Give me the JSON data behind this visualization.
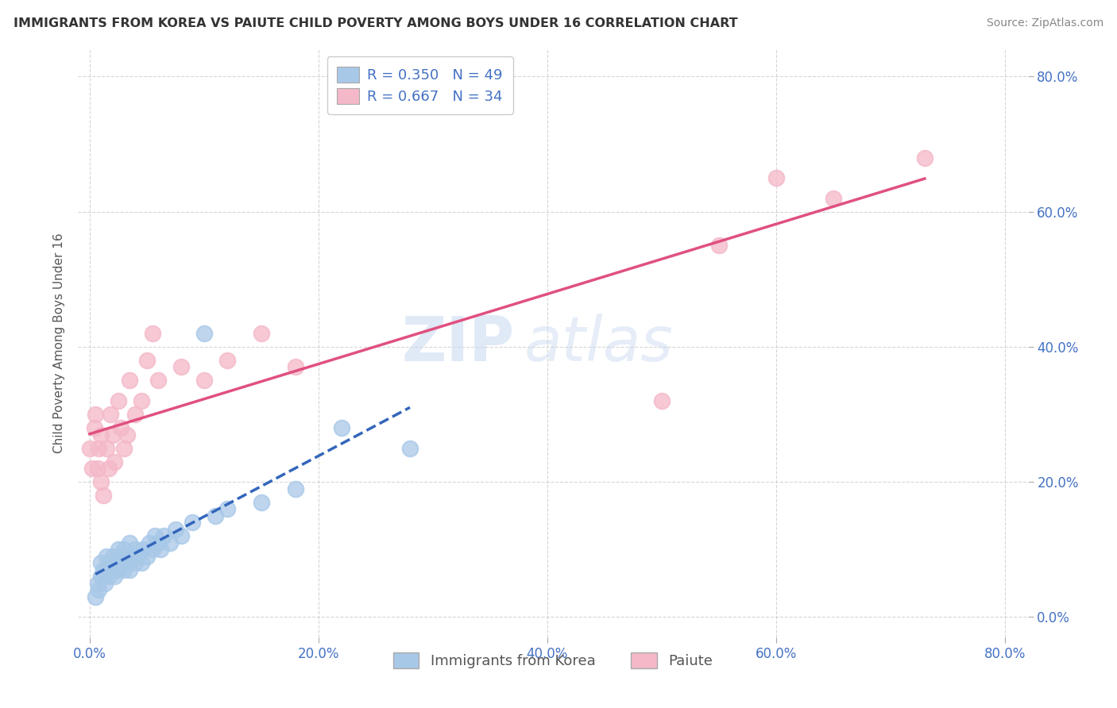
{
  "title": "IMMIGRANTS FROM KOREA VS PAIUTE CHILD POVERTY AMONG BOYS UNDER 16 CORRELATION CHART",
  "source": "Source: ZipAtlas.com",
  "ylabel": "Child Poverty Among Boys Under 16",
  "xlim": [
    -0.01,
    0.82
  ],
  "ylim": [
    -0.03,
    0.84
  ],
  "xticks": [
    0.0,
    0.2,
    0.4,
    0.6,
    0.8
  ],
  "yticks": [
    0.0,
    0.2,
    0.4,
    0.6,
    0.8
  ],
  "xtick_labels": [
    "0.0%",
    "20.0%",
    "40.0%",
    "60.0%",
    "80.0%"
  ],
  "ytick_labels": [
    "0.0%",
    "20.0%",
    "40.0%",
    "60.0%",
    "80.0%"
  ],
  "legend_line1": "R = 0.350   N = 49",
  "legend_line2": "R = 0.667   N = 34",
  "legend_label_blue": "Immigrants from Korea",
  "legend_label_pink": "Paiute",
  "blue_scatter_color": "#a8c8e8",
  "pink_scatter_color": "#f4b8c8",
  "blue_line_color": "#3366bb",
  "pink_line_color": "#e05080",
  "text_color_blue": "#4472c4",
  "grid_color": "#cccccc",
  "background_color": "#ffffff",
  "korea_x": [
    0.005,
    0.007,
    0.008,
    0.01,
    0.01,
    0.012,
    0.013,
    0.015,
    0.015,
    0.017,
    0.018,
    0.02,
    0.02,
    0.022,
    0.023,
    0.025,
    0.025,
    0.027,
    0.028,
    0.03,
    0.03,
    0.032,
    0.033,
    0.035,
    0.035,
    0.037,
    0.04,
    0.04,
    0.042,
    0.045,
    0.047,
    0.05,
    0.052,
    0.055,
    0.057,
    0.06,
    0.062,
    0.065,
    0.07,
    0.075,
    0.08,
    0.09,
    0.1,
    0.11,
    0.12,
    0.15,
    0.18,
    0.22,
    0.28
  ],
  "korea_y": [
    0.03,
    0.05,
    0.04,
    0.08,
    0.06,
    0.07,
    0.05,
    0.09,
    0.07,
    0.06,
    0.08,
    0.07,
    0.09,
    0.06,
    0.08,
    0.07,
    0.1,
    0.08,
    0.09,
    0.07,
    0.1,
    0.08,
    0.09,
    0.07,
    0.11,
    0.09,
    0.08,
    0.1,
    0.09,
    0.08,
    0.1,
    0.09,
    0.11,
    0.1,
    0.12,
    0.11,
    0.1,
    0.12,
    0.11,
    0.13,
    0.12,
    0.14,
    0.42,
    0.15,
    0.16,
    0.17,
    0.19,
    0.28,
    0.25
  ],
  "paiute_x": [
    0.0,
    0.002,
    0.004,
    0.005,
    0.007,
    0.008,
    0.01,
    0.01,
    0.012,
    0.015,
    0.017,
    0.018,
    0.02,
    0.022,
    0.025,
    0.027,
    0.03,
    0.033,
    0.035,
    0.04,
    0.045,
    0.05,
    0.055,
    0.06,
    0.08,
    0.1,
    0.12,
    0.15,
    0.18,
    0.5,
    0.55,
    0.6,
    0.65,
    0.73
  ],
  "paiute_y": [
    0.25,
    0.22,
    0.28,
    0.3,
    0.22,
    0.25,
    0.2,
    0.27,
    0.18,
    0.25,
    0.22,
    0.3,
    0.27,
    0.23,
    0.32,
    0.28,
    0.25,
    0.27,
    0.35,
    0.3,
    0.32,
    0.38,
    0.42,
    0.35,
    0.37,
    0.35,
    0.38,
    0.42,
    0.37,
    0.32,
    0.55,
    0.65,
    0.62,
    0.68
  ]
}
